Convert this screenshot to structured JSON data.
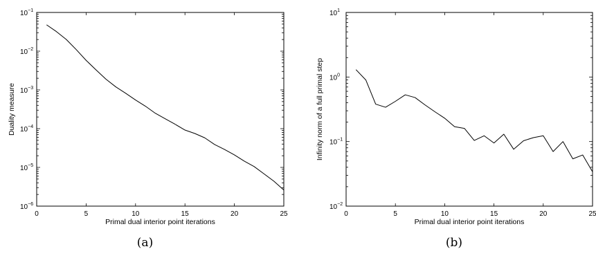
{
  "chart_data": [
    {
      "type": "line",
      "caption": "(a)",
      "xlabel": "Primal dual interior point iterations",
      "ylabel": "Duality measure",
      "xlim": [
        0,
        25
      ],
      "ylim": [
        1e-06,
        0.1
      ],
      "yscale": "log",
      "grid": false,
      "x_ticks": [
        0,
        5,
        10,
        15,
        20,
        25
      ],
      "y_ticks": [
        {
          "value": 1e-06,
          "base": "10",
          "exp": "−6"
        },
        {
          "value": 1e-05,
          "base": "10",
          "exp": "−5"
        },
        {
          "value": 0.0001,
          "base": "10",
          "exp": "−4"
        },
        {
          "value": 0.001,
          "base": "10",
          "exp": "−3"
        },
        {
          "value": 0.01,
          "base": "10",
          "exp": "−2"
        },
        {
          "value": 0.1,
          "base": "10",
          "exp": "−1"
        }
      ],
      "x": [
        1,
        2,
        3,
        4,
        5,
        6,
        7,
        8,
        9,
        10,
        11,
        12,
        13,
        14,
        15,
        16,
        17,
        18,
        19,
        20,
        21,
        22,
        23,
        24,
        25
      ],
      "y": [
        0.048,
        0.032,
        0.02,
        0.011,
        0.0058,
        0.0033,
        0.0019,
        0.0012,
        0.00082,
        0.00055,
        0.00038,
        0.00025,
        0.00018,
        0.00013,
        9.2e-05,
        7.5e-05,
        5.8e-05,
        3.9e-05,
        2.9e-05,
        2.1e-05,
        1.45e-05,
        1.05e-05,
        6.8e-06,
        4.4e-06,
        2.6e-06
      ]
    },
    {
      "type": "line",
      "caption": "(b)",
      "xlabel": "Primal dual interior point iterations",
      "ylabel": "Infinity norm of a full primal step",
      "xlim": [
        0,
        25
      ],
      "ylim": [
        0.01,
        10.0
      ],
      "yscale": "log",
      "grid": false,
      "x_ticks": [
        0,
        5,
        10,
        15,
        20,
        25
      ],
      "y_ticks": [
        {
          "value": 0.01,
          "base": "10",
          "exp": "−2"
        },
        {
          "value": 0.1,
          "base": "10",
          "exp": "−1"
        },
        {
          "value": 1,
          "base": "10",
          "exp": "0"
        },
        {
          "value": 10,
          "base": "10",
          "exp": "1"
        }
      ],
      "x": [
        1,
        2,
        3,
        4,
        5,
        6,
        7,
        8,
        9,
        10,
        11,
        12,
        13,
        14,
        15,
        16,
        17,
        18,
        19,
        20,
        21,
        22,
        23,
        24,
        25
      ],
      "y": [
        1.3,
        0.9,
        0.38,
        0.34,
        0.42,
        0.53,
        0.48,
        0.37,
        0.29,
        0.23,
        0.17,
        0.16,
        0.104,
        0.123,
        0.095,
        0.13,
        0.076,
        0.103,
        0.115,
        0.123,
        0.07,
        0.1,
        0.054,
        0.062,
        0.034
      ]
    }
  ]
}
